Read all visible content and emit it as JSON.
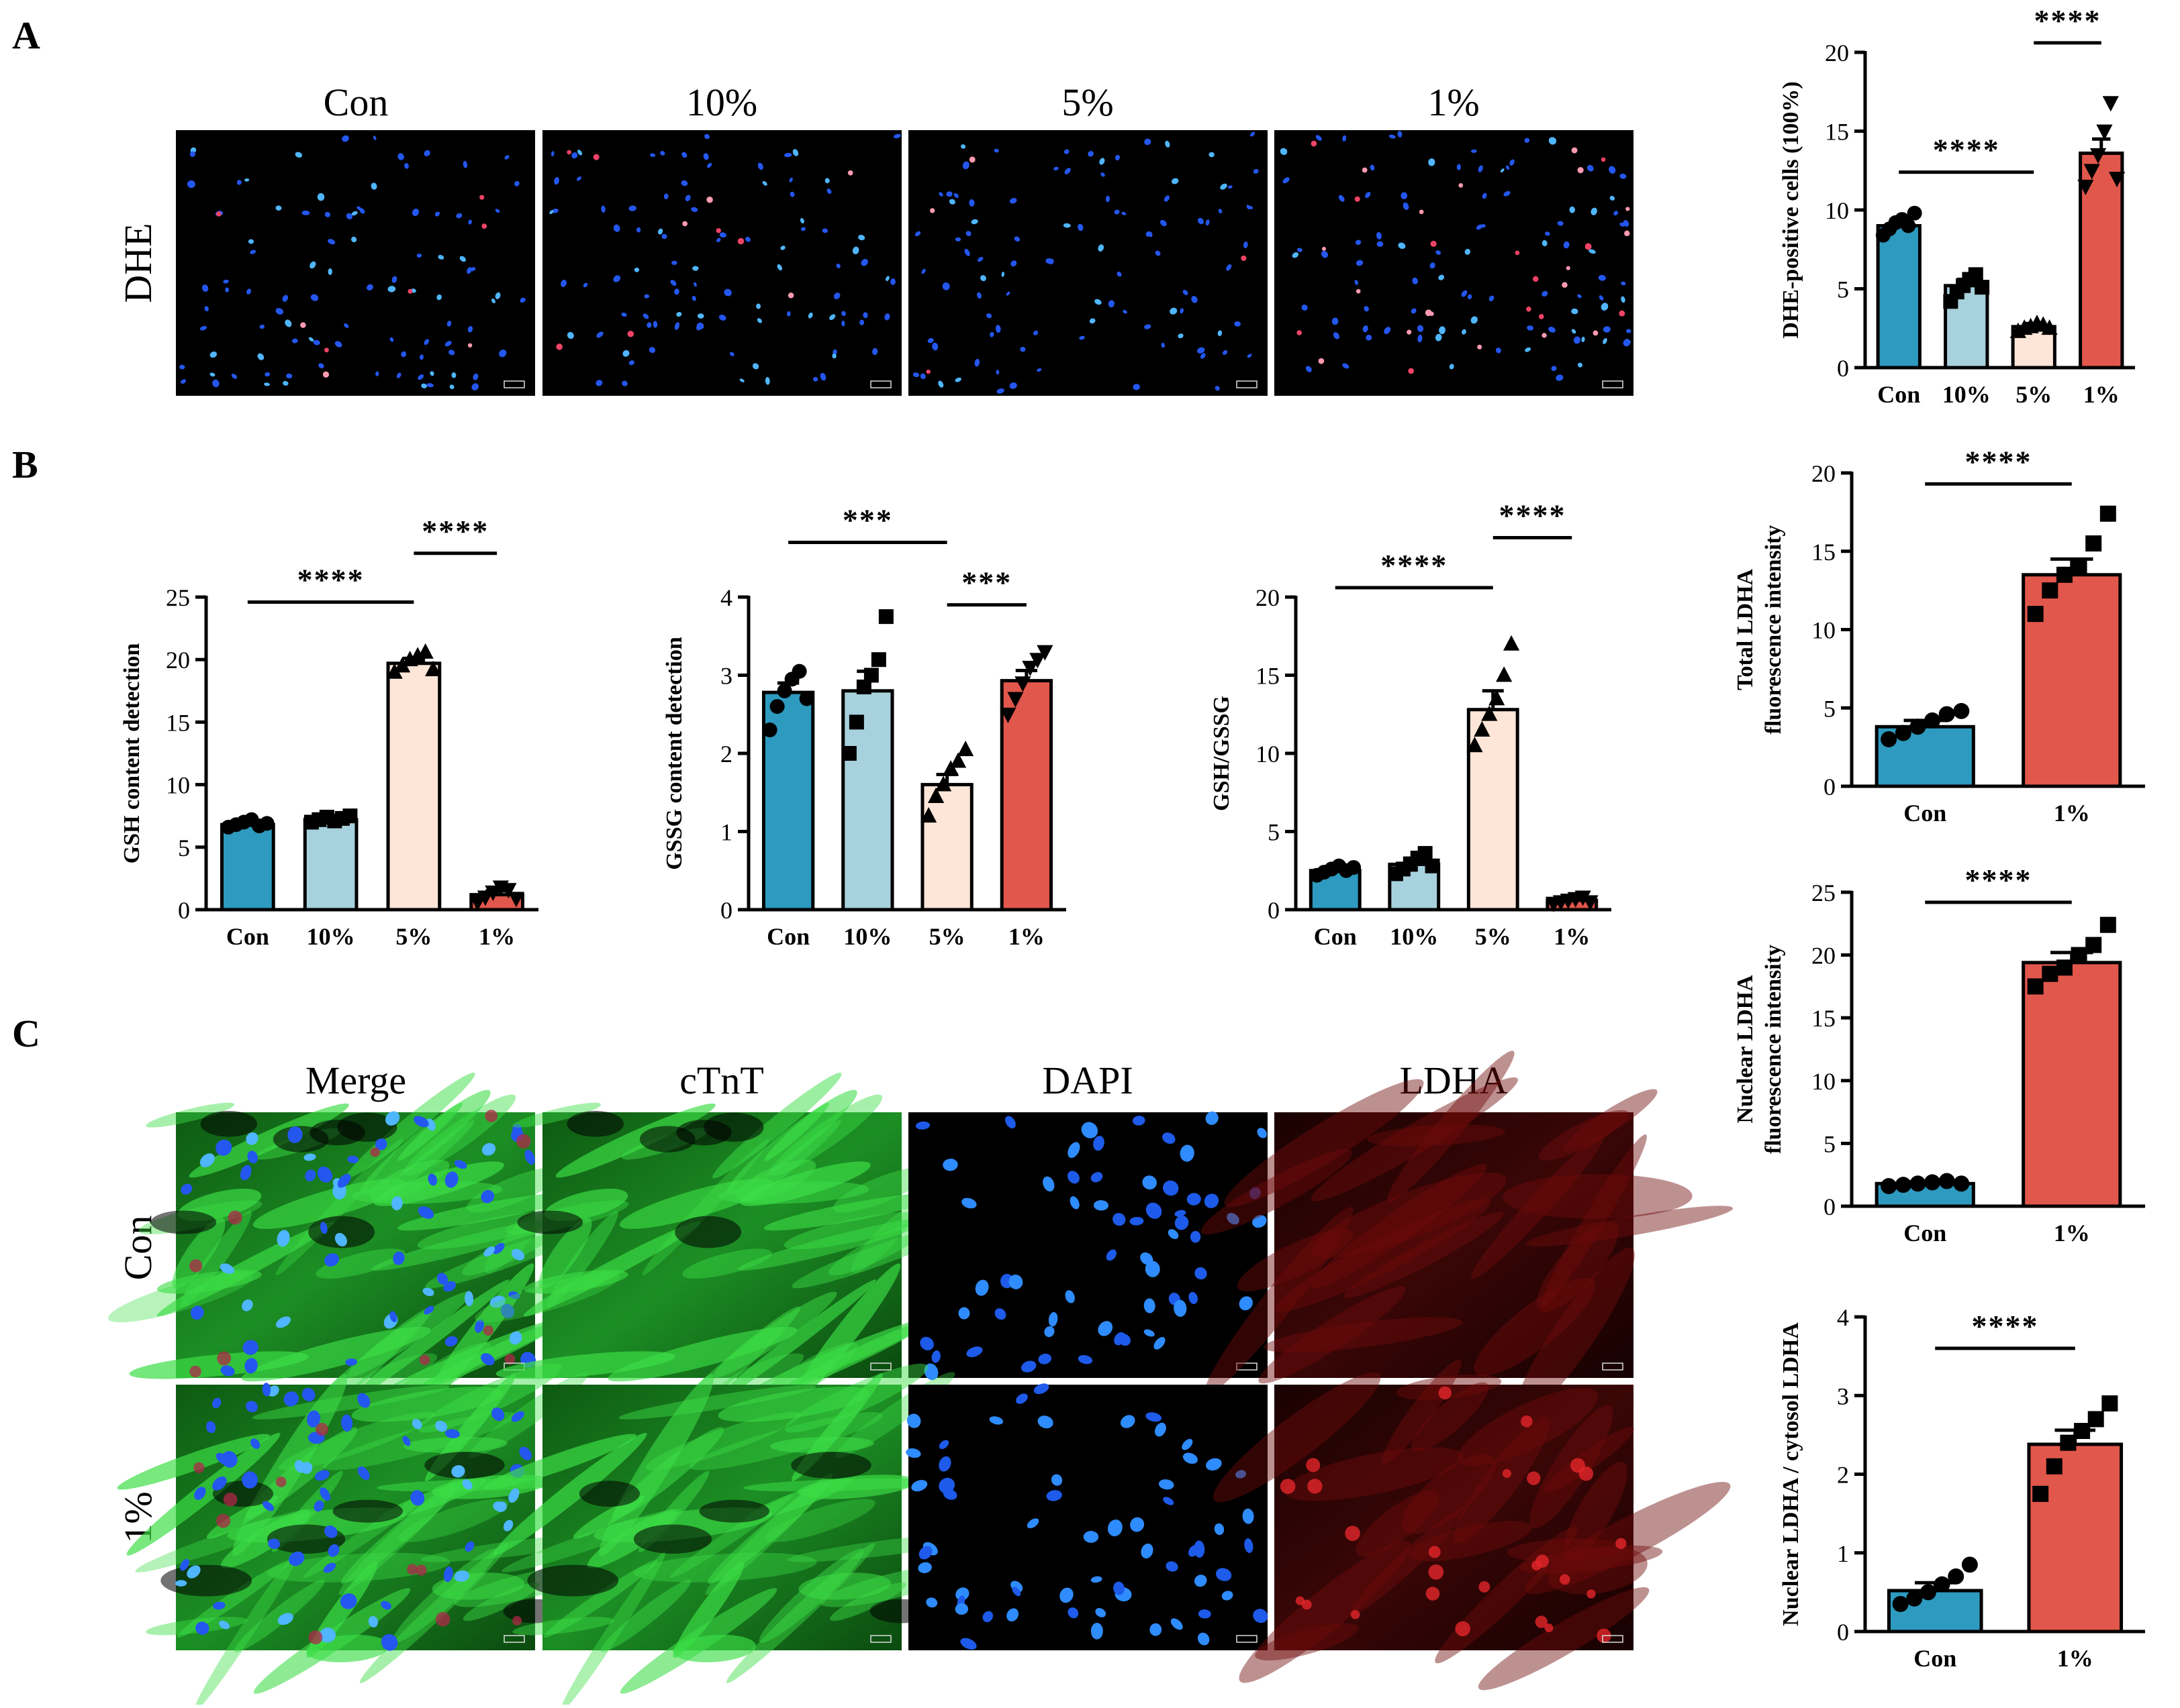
{
  "panels": [
    {
      "letter": "A"
    },
    {
      "letter": "B"
    },
    {
      "letter": "C"
    }
  ],
  "colors": {
    "con": "#2E9ABF",
    "p10": "#A7D1DD",
    "p5": "#FDE6D8",
    "p1": "#E2574C",
    "dapi": "#1E6CF0",
    "dhe_red": "#E8375A",
    "ctnt": "#2FD33B",
    "ldha": "#C81E1E"
  },
  "micrographs": {
    "dhe": {
      "row_label": "DHE",
      "column_titles": [
        "Con",
        "10%",
        "5%",
        "1%"
      ]
    },
    "if": {
      "column_titles": [
        "Merge",
        "cTnT",
        "DAPI",
        "LDHA"
      ],
      "row_labels": [
        "Con",
        "1%"
      ]
    }
  },
  "chart_data": [
    {
      "id": "dhe",
      "type": "bar",
      "categories": [
        "Con",
        "10%",
        "5%",
        "1%"
      ],
      "values": [
        9.0,
        5.2,
        2.6,
        13.6
      ],
      "errors": [
        0.4,
        0.4,
        0.2,
        0.9
      ],
      "points": [
        [
          8.4,
          8.8,
          9.2,
          9.4,
          9.0,
          9.8
        ],
        [
          4.2,
          4.8,
          5.2,
          5.6,
          5.9,
          5.1
        ],
        [
          2.3,
          2.5,
          2.6,
          2.8,
          2.7,
          2.5
        ],
        [
          11.5,
          12.5,
          13.5,
          15.0,
          16.8,
          12.0
        ]
      ],
      "marker": [
        "circle",
        "square",
        "triangle",
        "triangle-down"
      ],
      "ylabel": "DHE-positive cells (100%)",
      "ylim": [
        0,
        20
      ],
      "yticks": [
        0,
        5,
        10,
        15,
        20
      ],
      "significance": [
        {
          "from": 0,
          "to": 2,
          "y": 12.4,
          "label": "****"
        },
        {
          "from": 2,
          "to": 3,
          "y": 20.6,
          "label": "****"
        }
      ]
    },
    {
      "id": "gsh",
      "type": "bar",
      "categories": [
        "Con",
        "10%",
        "5%",
        "1%"
      ],
      "values": [
        6.8,
        7.2,
        19.7,
        1.2
      ],
      "errors": [
        0.2,
        0.2,
        0.4,
        0.3
      ],
      "points": [
        [
          6.6,
          6.8,
          7.0,
          7.2,
          6.7,
          6.9
        ],
        [
          7.0,
          7.2,
          7.4,
          7.1,
          7.3,
          7.5
        ],
        [
          19.0,
          19.5,
          20.0,
          20.3,
          20.6,
          19.2
        ],
        [
          0.6,
          1.0,
          1.4,
          1.8,
          1.6,
          0.9
        ]
      ],
      "marker": [
        "circle",
        "square",
        "triangle",
        "triangle-down"
      ],
      "ylabel": "GSH content detection",
      "ylim": [
        0,
        25
      ],
      "yticks": [
        0,
        5,
        10,
        15,
        20,
        25
      ],
      "significance": [
        {
          "from": 0,
          "to": 2,
          "y": 24.6,
          "label": "****"
        },
        {
          "from": 2,
          "to": 3,
          "y": 28.5,
          "label": "****"
        }
      ]
    },
    {
      "id": "gssg",
      "type": "bar",
      "categories": [
        "Con",
        "10%",
        "5%",
        "1%"
      ],
      "values": [
        2.78,
        2.8,
        1.6,
        2.93
      ],
      "errors": [
        0.12,
        0.25,
        0.13,
        0.13
      ],
      "points": [
        [
          2.3,
          2.6,
          2.8,
          2.95,
          3.05,
          2.7
        ],
        [
          2.0,
          2.4,
          2.85,
          3.0,
          3.2,
          3.75
        ],
        [
          1.2,
          1.45,
          1.6,
          1.8,
          1.9,
          2.05
        ],
        [
          2.5,
          2.7,
          2.9,
          3.1,
          3.2,
          3.3
        ]
      ],
      "marker": [
        "circle",
        "square",
        "triangle",
        "triangle-down"
      ],
      "ylabel": "GSSG content detection",
      "ylim": [
        0,
        4
      ],
      "yticks": [
        0,
        1,
        2,
        3,
        4
      ],
      "significance": [
        {
          "from": 0,
          "to": 2,
          "y": 4.7,
          "label": "***"
        },
        {
          "from": 2,
          "to": 3,
          "y": 3.9,
          "label": "***"
        }
      ]
    },
    {
      "id": "ratio",
      "type": "bar",
      "categories": [
        "Con",
        "10%",
        "5%",
        "1%"
      ],
      "values": [
        2.5,
        2.9,
        12.8,
        0.6
      ],
      "errors": [
        0.15,
        0.4,
        1.2,
        0.1
      ],
      "points": [
        [
          2.2,
          2.4,
          2.6,
          2.8,
          2.5,
          2.7
        ],
        [
          2.3,
          2.6,
          2.9,
          3.3,
          3.6,
          2.8
        ],
        [
          10.5,
          11.5,
          12.5,
          13.5,
          15.0,
          17.0
        ],
        [
          0.4,
          0.5,
          0.6,
          0.7,
          0.8,
          0.5
        ]
      ],
      "marker": [
        "circle",
        "square",
        "triangle",
        "triangle-down"
      ],
      "ylabel": "GSH/GSSG",
      "ylim": [
        0,
        20
      ],
      "yticks": [
        0,
        5,
        10,
        15,
        20
      ],
      "significance": [
        {
          "from": 0,
          "to": 2,
          "y": 20.6,
          "label": "****"
        },
        {
          "from": 2,
          "to": 3,
          "y": 23.8,
          "label": "****"
        }
      ]
    },
    {
      "id": "total_ldha",
      "type": "bar",
      "categories": [
        "Con",
        "1%"
      ],
      "values": [
        3.8,
        13.5
      ],
      "errors": [
        0.4,
        1.0
      ],
      "points": [
        [
          3.0,
          3.4,
          3.8,
          4.2,
          4.6,
          4.8
        ],
        [
          11.0,
          12.5,
          13.5,
          14.0,
          15.5,
          17.4
        ]
      ],
      "marker": [
        "circle",
        "square"
      ],
      "ylabel": "Total LDHA\nfluorescence intensity",
      "ylim": [
        0,
        20
      ],
      "yticks": [
        0,
        5,
        10,
        15,
        20
      ],
      "significance": [
        {
          "from": 0,
          "to": 1,
          "y": 19.3,
          "label": "****"
        }
      ]
    },
    {
      "id": "nuclear_ldha",
      "type": "bar",
      "categories": [
        "Con",
        "1%"
      ],
      "values": [
        1.8,
        19.4
      ],
      "errors": [
        0.15,
        0.8
      ],
      "points": [
        [
          1.6,
          1.7,
          1.8,
          1.9,
          2.0,
          1.8
        ],
        [
          17.5,
          18.5,
          19.0,
          20.0,
          20.8,
          22.4
        ]
      ],
      "marker": [
        "circle",
        "square"
      ],
      "ylabel": "Nuclear LDHA\nfluorescence intensity",
      "ylim": [
        0,
        25
      ],
      "yticks": [
        0,
        5,
        10,
        15,
        20,
        25
      ],
      "significance": [
        {
          "from": 0,
          "to": 1,
          "y": 24.2,
          "label": "****"
        }
      ]
    },
    {
      "id": "nc_ratio",
      "type": "bar",
      "categories": [
        "Con",
        "1%"
      ],
      "values": [
        0.52,
        2.38
      ],
      "errors": [
        0.1,
        0.18
      ],
      "points": [
        [
          0.35,
          0.42,
          0.5,
          0.6,
          0.7,
          0.85
        ],
        [
          1.75,
          2.1,
          2.4,
          2.55,
          2.7,
          2.9
        ]
      ],
      "marker": [
        "circle",
        "square"
      ],
      "ylabel": "Nuclear LDHA / cytosol LDHA",
      "ylim": [
        0,
        4
      ],
      "yticks": [
        0,
        1,
        2,
        3,
        4
      ],
      "significance": [
        {
          "from": 0,
          "to": 1,
          "y": 3.6,
          "label": "****"
        }
      ]
    }
  ]
}
